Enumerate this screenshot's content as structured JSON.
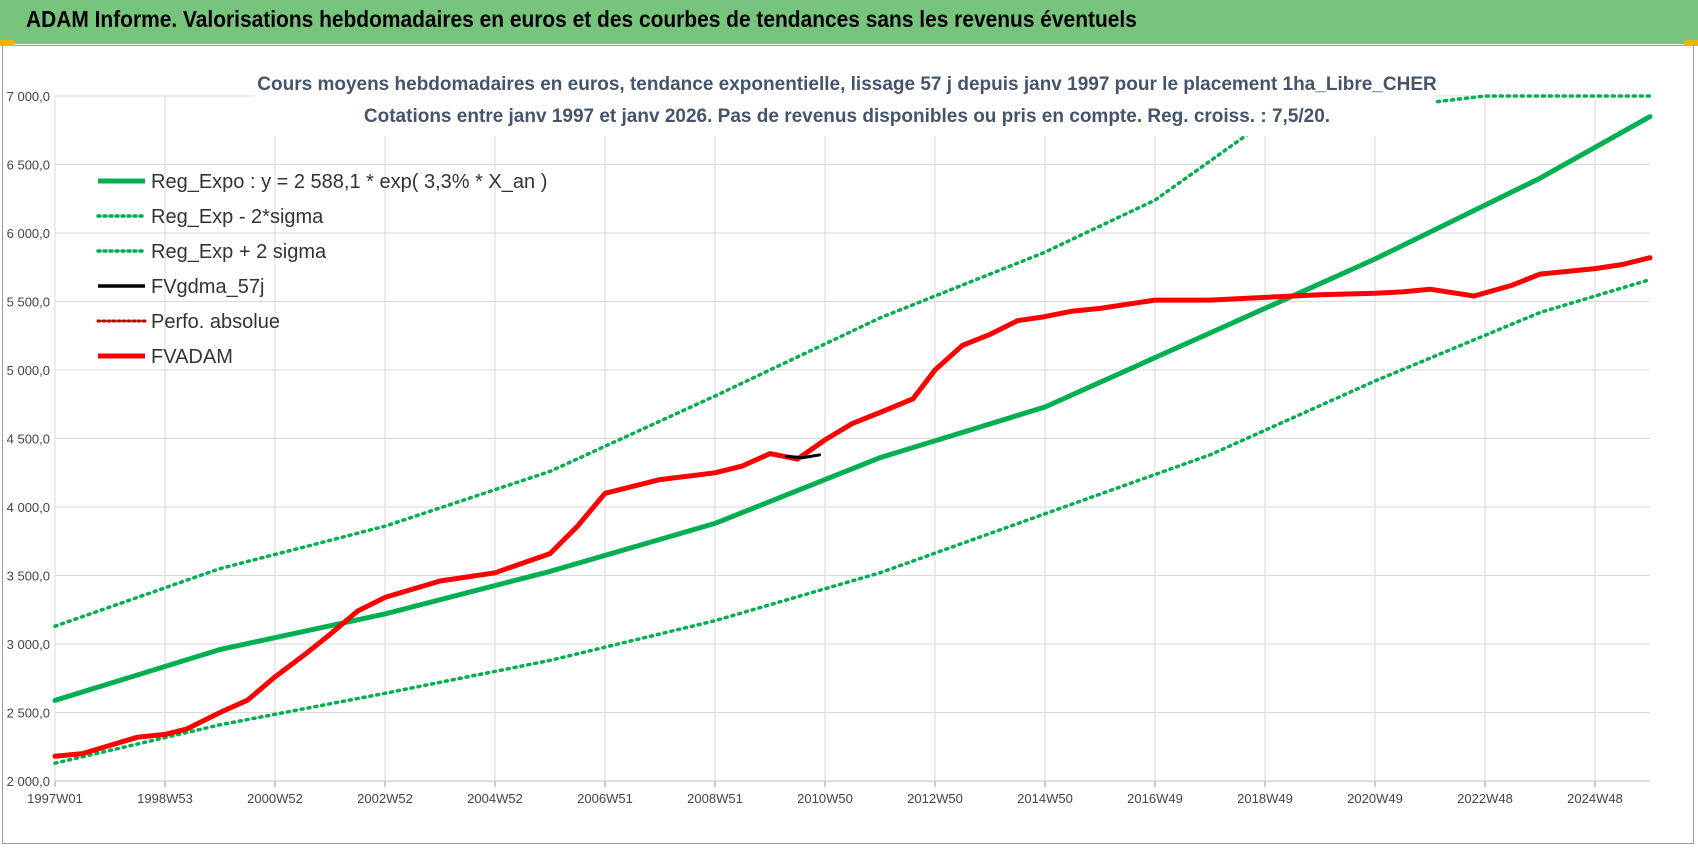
{
  "header": {
    "title": "ADAM Informe. Valorisations hebdomadaires en euros et des courbes de tendances sans les revenus éventuels"
  },
  "colors": {
    "header_bg": "#77c47c",
    "trend": "#00b050",
    "adam": "#ff0000",
    "gdma": "#000000",
    "perfo": "#c00000",
    "grid": "#d9d9d9"
  },
  "chart_data": {
    "type": "line",
    "title_line1": "Cours moyens  hebdomadaires en euros, tendance exponentielle, lissage 57 j depuis janv 1997 pour le placement 1ha_Libre_CHER",
    "title_line2": "Cotations entre janv 1997 et janv 2026. Pas de revenus disponibles ou pris  en compte. Reg. croiss. : 7,5/20.",
    "ylim": [
      2000,
      7000
    ],
    "xlim": [
      1997.0,
      2026.0
    ],
    "y_ticks": [
      2000,
      2500,
      3000,
      3500,
      4000,
      4500,
      5000,
      5500,
      6000,
      6500,
      7000
    ],
    "y_tick_labels": [
      "2 000,0",
      "2 500,0",
      "3 000,0",
      "3 500,0",
      "4 000,0",
      "4 500,0",
      "5 000,0",
      "5 500,0",
      "6 000,0",
      "6 500,0",
      "7 000,0"
    ],
    "x_ticks": [
      1997.0,
      1999.0,
      2001.0,
      2003.0,
      2005.0,
      2007.0,
      2009.0,
      2011.0,
      2013.0,
      2015.0,
      2017.0,
      2019.0,
      2021.0,
      2023.0,
      2025.0
    ],
    "x_tick_labels": [
      "1997W01",
      "1998W53",
      "2000W52",
      "2002W52",
      "2004W52",
      "2006W51",
      "2008W51",
      "2010W50",
      "2012W50",
      "2014W50",
      "2016W49",
      "2018W49",
      "2020W49",
      "2022W48",
      "2024W48"
    ],
    "grid": true,
    "legend_position": "top-left",
    "series": [
      {
        "name": "Reg_Expo : y = 2 588,1 * exp( 3,3% *  X_an )",
        "style": "solid-thick",
        "color": "#00b050",
        "x": [
          1997.0,
          2000.0,
          2003.0,
          2006.0,
          2009.0,
          2012.0,
          2015.0,
          2018.0,
          2021.0,
          2024.0,
          2026.0
        ],
        "y": [
          2588,
          2960,
          3220,
          3530,
          3880,
          4360,
          4730,
          5270,
          5810,
          6400,
          6850
        ]
      },
      {
        "name": "Reg_Exp - 2*sigma",
        "style": "dotted",
        "color": "#00b050",
        "x": [
          1997.0,
          2000.0,
          2003.0,
          2006.0,
          2009.0,
          2012.0,
          2015.0,
          2018.0,
          2021.0,
          2024.0,
          2026.0
        ],
        "y": [
          2130,
          2410,
          2640,
          2880,
          3170,
          3520,
          3950,
          4380,
          4920,
          5420,
          5660
        ]
      },
      {
        "name": "Reg_Exp + 2 sigma",
        "style": "dotted",
        "color": "#00b050",
        "x": [
          1997.0,
          2000.0,
          2003.0,
          2006.0,
          2009.0,
          2012.0,
          2015.0,
          2017.0,
          2019.0,
          2023.0,
          2026.0
        ],
        "y": [
          3130,
          3550,
          3860,
          4260,
          4810,
          5380,
          5860,
          6240,
          6810,
          7000,
          7000
        ]
      },
      {
        "name": "FVgdma_57j",
        "style": "solid",
        "color": "#000000",
        "x": [
          2010.3,
          2010.6,
          2010.9
        ],
        "y": [
          4370,
          4360,
          4380
        ]
      },
      {
        "name": "Perfo. absolue",
        "style": "dotted",
        "color": "#c00000",
        "x": [],
        "y": []
      },
      {
        "name": "FVADAM",
        "style": "solid-thick",
        "color": "#ff0000",
        "x": [
          1997.0,
          1997.5,
          1998.0,
          1998.5,
          1999.0,
          1999.4,
          2000.0,
          2000.5,
          2001.0,
          2001.5,
          2002.0,
          2002.5,
          2003.0,
          2004.0,
          2005.0,
          2006.0,
          2006.5,
          2007.0,
          2008.0,
          2009.0,
          2009.5,
          2010.0,
          2010.5,
          2011.0,
          2011.5,
          2012.0,
          2012.6,
          2013.0,
          2013.5,
          2014.0,
          2014.5,
          2015.0,
          2015.5,
          2016.0,
          2017.0,
          2018.0,
          2019.0,
          2020.0,
          2021.0,
          2021.5,
          2022.0,
          2022.8,
          2023.5,
          2024.0,
          2024.5,
          2025.0,
          2025.5,
          2026.0
        ],
        "y": [
          2180,
          2200,
          2260,
          2320,
          2340,
          2380,
          2500,
          2590,
          2760,
          2910,
          3070,
          3240,
          3340,
          3460,
          3520,
          3660,
          3860,
          4100,
          4200,
          4250,
          4300,
          4390,
          4350,
          4490,
          4610,
          4690,
          4790,
          5000,
          5180,
          5260,
          5360,
          5390,
          5430,
          5450,
          5510,
          5510,
          5530,
          5550,
          5560,
          5570,
          5590,
          5540,
          5620,
          5700,
          5720,
          5740,
          5770,
          5820
        ]
      }
    ]
  }
}
